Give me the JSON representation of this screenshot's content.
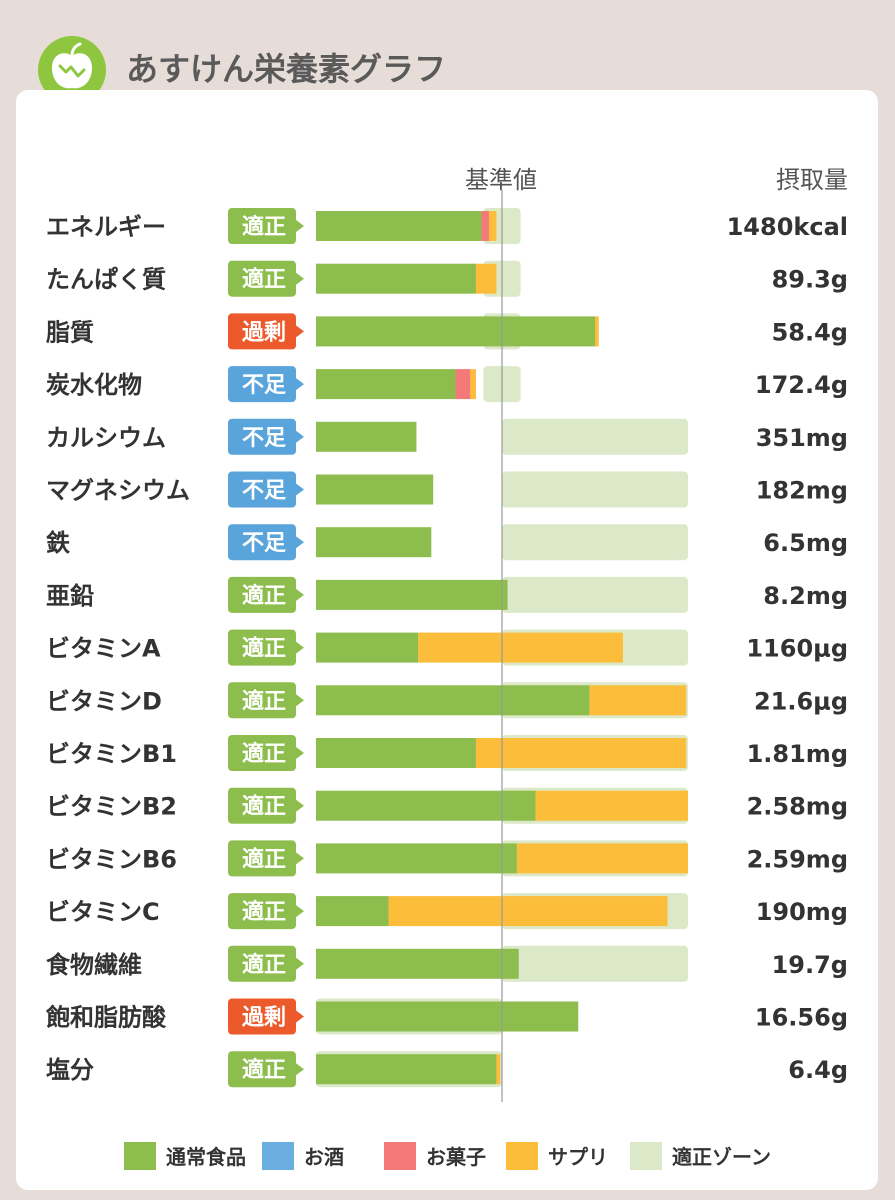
{
  "app": {
    "title": "あすけん栄養素グラフ"
  },
  "chart_data": {
    "type": "bar",
    "stacked": true,
    "orientation": "horizontal",
    "reference_label": "基準値",
    "value_header": "摂取量",
    "x_unit": "percent_of_reference",
    "status_colors": {
      "適正": "#8dbd4c",
      "過剰": "#ec5a2b",
      "不足": "#5aa4dc"
    },
    "series": [
      {
        "name": "通常食品",
        "color": "#8dbd4c"
      },
      {
        "name": "お酒",
        "color": "#6aaee0"
      },
      {
        "name": "お菓子",
        "color": "#f47a7a"
      },
      {
        "name": "サプリ",
        "color": "#fbbd3a"
      },
      {
        "name": "適正ゾーン",
        "color": "#dce9c8"
      }
    ],
    "rows": [
      {
        "label": "エネルギー",
        "status": "適正",
        "value": "1480kcal",
        "normal": 89,
        "alcohol": 0,
        "snack": 4,
        "supplement": 4,
        "zone": [
          90,
          110
        ]
      },
      {
        "label": "たんぱく質",
        "status": "適正",
        "value": "89.3g",
        "normal": 86,
        "alcohol": 0,
        "snack": 0,
        "supplement": 11,
        "zone": [
          90,
          110
        ]
      },
      {
        "label": "脂質",
        "status": "過剰",
        "value": "58.4g",
        "normal": 150,
        "alcohol": 0,
        "snack": 0,
        "supplement": 2,
        "zone": [
          90,
          110
        ]
      },
      {
        "label": "炭水化物",
        "status": "不足",
        "value": "172.4g",
        "normal": 75,
        "alcohol": 0,
        "snack": 8,
        "supplement": 3,
        "zone": [
          90,
          110
        ]
      },
      {
        "label": "カルシウム",
        "status": "不足",
        "value": "351mg",
        "normal": 54,
        "alcohol": 0,
        "snack": 0,
        "supplement": 0,
        "zone": [
          100,
          200
        ]
      },
      {
        "label": "マグネシウム",
        "status": "不足",
        "value": "182mg",
        "normal": 63,
        "alcohol": 0,
        "snack": 0,
        "supplement": 0,
        "zone": [
          100,
          200
        ]
      },
      {
        "label": "鉄",
        "status": "不足",
        "value": "6.5mg",
        "normal": 62,
        "alcohol": 0,
        "snack": 0,
        "supplement": 0,
        "zone": [
          100,
          200
        ]
      },
      {
        "label": "亜鉛",
        "status": "適正",
        "value": "8.2mg",
        "normal": 103,
        "alcohol": 0,
        "snack": 0,
        "supplement": 0,
        "zone": [
          100,
          200
        ]
      },
      {
        "label": "ビタミンA",
        "status": "適正",
        "value": "1160μg",
        "normal": 55,
        "alcohol": 0,
        "snack": 0,
        "supplement": 110,
        "zone": [
          100,
          200
        ]
      },
      {
        "label": "ビタミンD",
        "status": "適正",
        "value": "21.6μg",
        "normal": 147,
        "alcohol": 0,
        "snack": 0,
        "supplement": 52,
        "zone": [
          100,
          200
        ]
      },
      {
        "label": "ビタミンB1",
        "status": "適正",
        "value": "1.81mg",
        "normal": 86,
        "alcohol": 0,
        "snack": 0,
        "supplement": 113,
        "zone": [
          100,
          200
        ]
      },
      {
        "label": "ビタミンB2",
        "status": "適正",
        "value": "2.58mg",
        "normal": 118,
        "alcohol": 0,
        "snack": 0,
        "supplement": 82,
        "zone": [
          100,
          200
        ]
      },
      {
        "label": "ビタミンB6",
        "status": "適正",
        "value": "2.59mg",
        "normal": 108,
        "alcohol": 0,
        "snack": 0,
        "supplement": 92,
        "zone": [
          100,
          200
        ]
      },
      {
        "label": "ビタミンC",
        "status": "適正",
        "value": "190mg",
        "normal": 39,
        "alcohol": 0,
        "snack": 0,
        "supplement": 150,
        "zone": [
          100,
          200
        ]
      },
      {
        "label": "食物繊維",
        "status": "適正",
        "value": "19.7g",
        "normal": 109,
        "alcohol": 0,
        "snack": 0,
        "supplement": 0,
        "zone": [
          100,
          200
        ]
      },
      {
        "label": "飽和脂肪酸",
        "status": "過剰",
        "value": "16.56g",
        "normal": 141,
        "alcohol": 0,
        "snack": 0,
        "supplement": 0,
        "zone": [
          0,
          100
        ]
      },
      {
        "label": "塩分",
        "status": "適正",
        "value": "6.4g",
        "normal": 97,
        "alcohol": 0,
        "snack": 0,
        "supplement": 2,
        "zone": [
          0,
          100
        ]
      }
    ]
  }
}
